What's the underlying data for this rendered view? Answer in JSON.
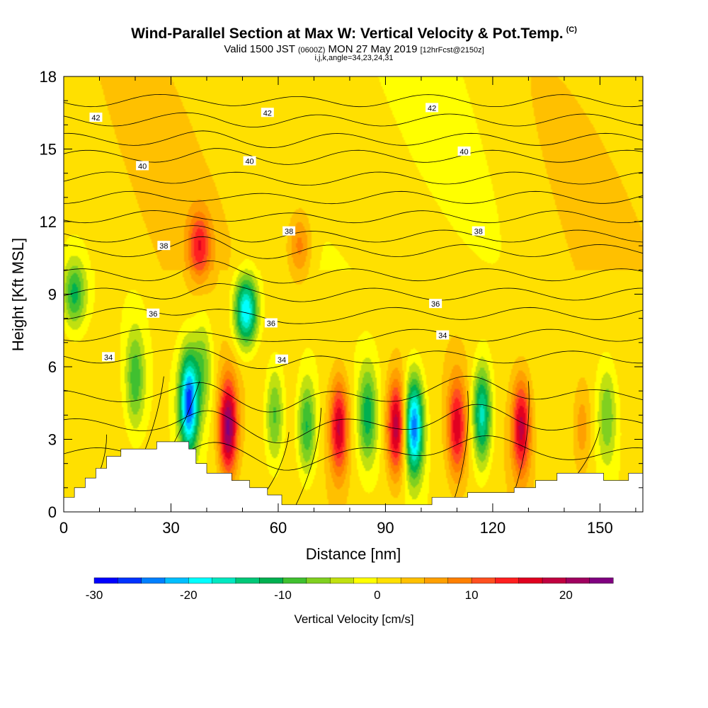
{
  "header": {
    "title": "Wind-Parallel Section at Max W: Vertical Velocity & Pot.Temp.",
    "title_mark": "(C)",
    "valid_prefix": "Valid 1500 JST",
    "valid_utc": "(0600Z)",
    "valid_date": "MON 27 May 2019",
    "forecast": "[12hrFcst@2150z]",
    "indices": "i,j,k,angle=34,23,24,31"
  },
  "chart_data": {
    "type": "heatmap",
    "xlabel": "Distance [nm]",
    "ylabel": "Height [Kft MSL]",
    "xlim": [
      0,
      162
    ],
    "ylim": [
      0,
      18
    ],
    "xticks": [
      0,
      30,
      60,
      90,
      120,
      150
    ],
    "yticks": [
      0,
      3,
      6,
      9,
      12,
      15,
      18
    ],
    "colorbar": {
      "label": "Vertical Velocity [cm/s]",
      "range": [
        -30,
        25
      ],
      "step": 2.5,
      "tick_values": [
        -30,
        -20,
        -10,
        0,
        10,
        20
      ],
      "tick_labels": [
        "-30",
        "-20",
        "-10",
        "0",
        "10",
        "20"
      ],
      "colors": [
        "#0000ff",
        "#0033ff",
        "#0080ff",
        "#00bfff",
        "#00ffff",
        "#00e8c0",
        "#00c878",
        "#00b050",
        "#40c030",
        "#80d020",
        "#c0e010",
        "#ffff00",
        "#ffe000",
        "#ffc000",
        "#ffa000",
        "#ff8000",
        "#ff5020",
        "#ff2020",
        "#e00020",
        "#c00040",
        "#a00060",
        "#800080"
      ]
    },
    "vertical_velocity_features": [
      {
        "x": 3,
        "z": 9,
        "w": -12
      },
      {
        "x": 20,
        "z": 5.5,
        "w": -10
      },
      {
        "x": 35,
        "z": 4.5,
        "w": -27
      },
      {
        "x": 39,
        "z": 6,
        "w": -8
      },
      {
        "x": 38,
        "z": 11,
        "w": 12
      },
      {
        "x": 46,
        "z": 3.5,
        "w": 22
      },
      {
        "x": 51,
        "z": 8.3,
        "w": -22
      },
      {
        "x": 59,
        "z": 4,
        "w": -10
      },
      {
        "x": 66,
        "z": 11,
        "w": 8
      },
      {
        "x": 68,
        "z": 3.5,
        "w": -12
      },
      {
        "x": 77,
        "z": 3.5,
        "w": 17
      },
      {
        "x": 85,
        "z": 4,
        "w": -12
      },
      {
        "x": 93,
        "z": 3.5,
        "w": 19
      },
      {
        "x": 98,
        "z": 3.5,
        "w": -25
      },
      {
        "x": 110,
        "z": 3.5,
        "w": 15
      },
      {
        "x": 117,
        "z": 4,
        "w": -18
      },
      {
        "x": 128,
        "z": 3.5,
        "w": 17
      },
      {
        "x": 145,
        "z": 3.5,
        "w": 6
      },
      {
        "x": 152,
        "z": 4,
        "w": -8
      }
    ],
    "theta_contours": {
      "labels": [
        "34",
        "36",
        "38",
        "40",
        "42"
      ],
      "values_c": [
        34,
        36,
        38,
        40,
        42
      ]
    },
    "terrain_kft": [
      [
        0,
        0.6
      ],
      [
        3,
        0.6
      ],
      [
        3,
        1.0
      ],
      [
        6,
        1.0
      ],
      [
        6,
        1.4
      ],
      [
        9,
        1.4
      ],
      [
        9,
        1.8
      ],
      [
        12,
        1.8
      ],
      [
        12,
        2.3
      ],
      [
        16,
        2.3
      ],
      [
        16,
        2.6
      ],
      [
        26,
        2.6
      ],
      [
        26,
        2.9
      ],
      [
        35,
        2.9
      ],
      [
        35,
        2.6
      ],
      [
        37,
        2.6
      ],
      [
        37,
        2.0
      ],
      [
        40,
        2.0
      ],
      [
        40,
        1.6
      ],
      [
        47,
        1.6
      ],
      [
        47,
        1.3
      ],
      [
        52,
        1.3
      ],
      [
        52,
        1.0
      ],
      [
        57,
        1.0
      ],
      [
        57,
        0.7
      ],
      [
        61,
        0.7
      ],
      [
        61,
        0.3
      ],
      [
        103,
        0.3
      ],
      [
        103,
        0.6
      ],
      [
        113,
        0.6
      ],
      [
        113,
        0.8
      ],
      [
        126,
        0.8
      ],
      [
        126,
        1.0
      ],
      [
        132,
        1.0
      ],
      [
        132,
        1.3
      ],
      [
        138,
        1.3
      ],
      [
        138,
        1.6
      ],
      [
        151,
        1.6
      ],
      [
        151,
        1.3
      ],
      [
        158,
        1.3
      ],
      [
        158,
        1.6
      ],
      [
        162,
        1.6
      ]
    ]
  }
}
